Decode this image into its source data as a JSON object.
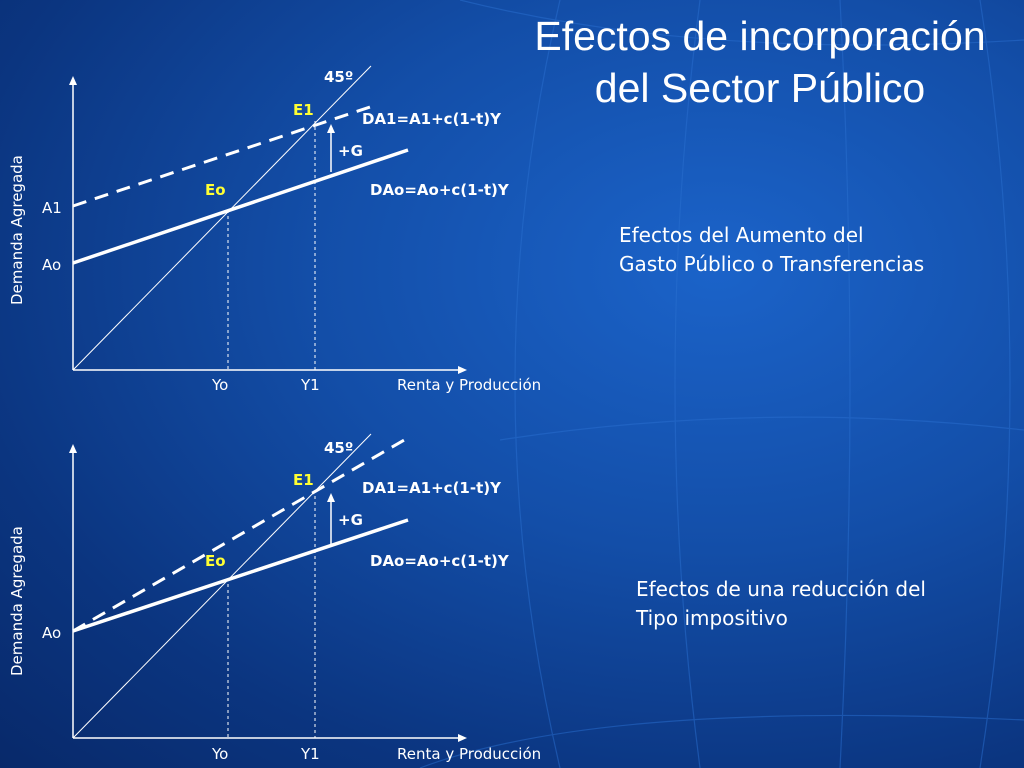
{
  "title": {
    "line1": "Efectos de incorporación",
    "line2": "del Sector Público"
  },
  "colors": {
    "accent_label": "#ffff33",
    "text": "#ffffff",
    "background": "#134ea8"
  },
  "diagram1": {
    "y_axis_label": "Demanda Agregada",
    "x_axis_label": "Renta y Producción",
    "angle_label": "45º",
    "point_e1": "E1",
    "point_eo": "Eo",
    "curve_da1": "DA1=A1+c(1-t)Y",
    "curve_dao": "DAo=Ao+c(1-t)Y",
    "shift_label": "+G",
    "intercept_a1": "A1",
    "intercept_ao": "Ao",
    "tick_yo": "Yo",
    "tick_y1": "Y1"
  },
  "diagram2": {
    "y_axis_label": "Demanda Agregada",
    "x_axis_label": "Renta y Producción",
    "angle_label": "45º",
    "point_e1": "E1",
    "point_eo": "Eo",
    "curve_da1": "DA1=A1+c(1-t)Y",
    "curve_dao": "DAo=Ao+c(1-t)Y",
    "shift_label": "+G",
    "intercept_ao": "Ao",
    "tick_yo": "Yo",
    "tick_y1": "Y1"
  },
  "notes": {
    "note1_line1": "Efectos del Aumento del",
    "note1_line2": "Gasto Público o Transferencias",
    "note2_line1": "Efectos de una reducción del",
    "note2_line2": "Tipo impositivo"
  }
}
